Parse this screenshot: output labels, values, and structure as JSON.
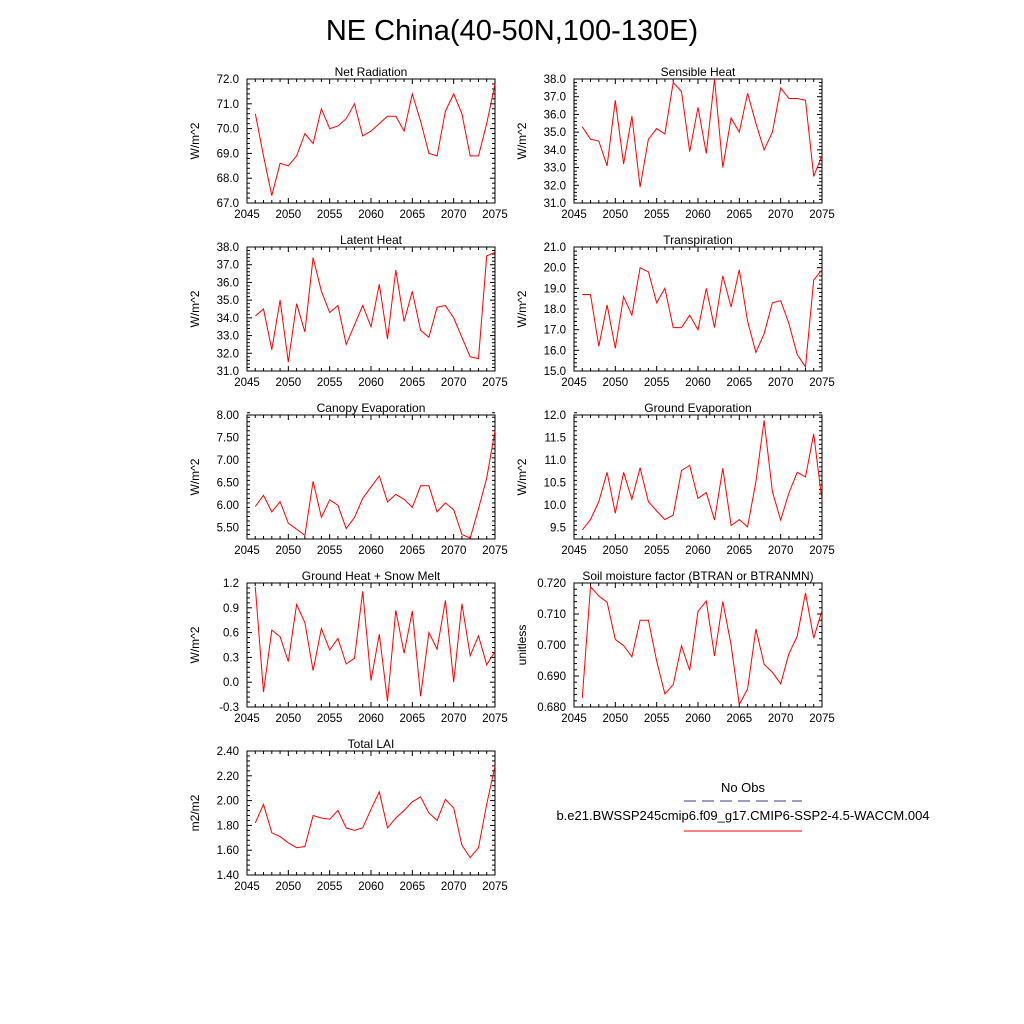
{
  "title": "NE China(40-50N,100-130E)",
  "colors": {
    "series": "#ff0000",
    "obs_dash": "#3a3a8c",
    "axis": "#000000"
  },
  "legend": {
    "obs_label": "No Obs",
    "case_label": "b.e21.BWSSP245cmip6.f09_g17.CMIP6-SSP2-4.5-WACCM.004"
  },
  "chart_data": [
    {
      "type": "line",
      "title": "Net Radiation",
      "ylabel": "W/m^2",
      "xlim": [
        2045,
        2075
      ],
      "ylim": [
        67.0,
        72.0
      ],
      "xticks": [
        "2045",
        "2050",
        "2055",
        "2060",
        "2065",
        "2070",
        "2075"
      ],
      "yticks": [
        "67.0",
        "68.0",
        "69.0",
        "70.0",
        "71.0",
        "72.0"
      ],
      "x": [
        2046,
        2047,
        2048,
        2049,
        2050,
        2051,
        2052,
        2053,
        2054,
        2055,
        2056,
        2057,
        2058,
        2059,
        2060,
        2061,
        2062,
        2063,
        2064,
        2065,
        2066,
        2067,
        2068,
        2069,
        2070,
        2071,
        2072,
        2073,
        2074,
        2075
      ],
      "values": [
        70.6,
        68.9,
        67.3,
        68.6,
        68.5,
        68.9,
        69.8,
        69.4,
        70.8,
        70.0,
        70.1,
        70.4,
        71.0,
        69.7,
        69.9,
        70.2,
        70.5,
        70.5,
        69.9,
        71.4,
        70.3,
        69.0,
        68.9,
        70.7,
        71.4,
        70.6,
        68.9,
        68.9,
        70.2,
        71.8
      ]
    },
    {
      "type": "line",
      "title": "Sensible Heat",
      "ylabel": "W/m^2",
      "xlim": [
        2045,
        2075
      ],
      "ylim": [
        31.0,
        38.0
      ],
      "xticks": [
        "2045",
        "2050",
        "2055",
        "2060",
        "2065",
        "2070",
        "2075"
      ],
      "yticks": [
        "31.0",
        "32.0",
        "33.0",
        "34.0",
        "35.0",
        "36.0",
        "37.0",
        "38.0"
      ],
      "x": [
        2046,
        2047,
        2048,
        2049,
        2050,
        2051,
        2052,
        2053,
        2054,
        2055,
        2056,
        2057,
        2058,
        2059,
        2060,
        2061,
        2062,
        2063,
        2064,
        2065,
        2066,
        2067,
        2068,
        2069,
        2070,
        2071,
        2072,
        2073,
        2074,
        2075
      ],
      "values": [
        35.3,
        34.6,
        34.5,
        33.1,
        36.8,
        33.2,
        35.9,
        31.9,
        34.6,
        35.2,
        34.9,
        37.8,
        37.3,
        33.9,
        36.4,
        33.8,
        38.0,
        33.0,
        35.8,
        35.0,
        37.2,
        35.5,
        34.0,
        35.0,
        37.5,
        36.9,
        36.9,
        36.8,
        32.5,
        33.7
      ]
    },
    {
      "type": "line",
      "title": "Latent Heat",
      "ylabel": "W/m^2",
      "xlim": [
        2045,
        2075
      ],
      "ylim": [
        31.0,
        38.0
      ],
      "xticks": [
        "2045",
        "2050",
        "2055",
        "2060",
        "2065",
        "2070",
        "2075"
      ],
      "yticks": [
        "31.0",
        "32.0",
        "33.0",
        "34.0",
        "35.0",
        "36.0",
        "37.0",
        "38.0"
      ],
      "x": [
        2046,
        2047,
        2048,
        2049,
        2050,
        2051,
        2052,
        2053,
        2054,
        2055,
        2056,
        2057,
        2058,
        2059,
        2060,
        2061,
        2062,
        2063,
        2064,
        2065,
        2066,
        2067,
        2068,
        2069,
        2070,
        2071,
        2072,
        2073,
        2074,
        2075
      ],
      "values": [
        34.1,
        34.5,
        32.2,
        35.0,
        31.5,
        34.8,
        33.2,
        37.4,
        35.5,
        34.3,
        34.7,
        32.5,
        33.6,
        34.7,
        33.5,
        35.9,
        32.8,
        36.7,
        33.8,
        35.5,
        33.3,
        32.9,
        34.6,
        34.7,
        34.0,
        32.9,
        31.8,
        31.7,
        37.5,
        37.7
      ]
    },
    {
      "type": "line",
      "title": "Transpiration",
      "ylabel": "W/m^2",
      "xlim": [
        2045,
        2075
      ],
      "ylim": [
        15.0,
        21.0
      ],
      "xticks": [
        "2045",
        "2050",
        "2055",
        "2060",
        "2065",
        "2070",
        "2075"
      ],
      "yticks": [
        "15.0",
        "16.0",
        "17.0",
        "18.0",
        "19.0",
        "20.0",
        "21.0"
      ],
      "x": [
        2046,
        2047,
        2048,
        2049,
        2050,
        2051,
        2052,
        2053,
        2054,
        2055,
        2056,
        2057,
        2058,
        2059,
        2060,
        2061,
        2062,
        2063,
        2064,
        2065,
        2066,
        2067,
        2068,
        2069,
        2070,
        2071,
        2072,
        2073,
        2074,
        2075
      ],
      "values": [
        18.7,
        18.7,
        16.2,
        18.2,
        16.1,
        18.6,
        17.7,
        20.0,
        19.8,
        18.3,
        19.0,
        17.1,
        17.1,
        17.7,
        17.0,
        19.0,
        17.1,
        19.6,
        18.1,
        19.9,
        17.4,
        15.9,
        16.8,
        18.3,
        18.4,
        17.3,
        15.8,
        15.2,
        19.4,
        19.9
      ]
    },
    {
      "type": "line",
      "title": "Canopy Evaporation",
      "ylabel": "W/m^2",
      "xlim": [
        2045,
        2075
      ],
      "ylim": [
        5.25,
        8.0
      ],
      "xticks": [
        "2045",
        "2050",
        "2055",
        "2060",
        "2065",
        "2070",
        "2075"
      ],
      "yticks": [
        "5.50",
        "6.00",
        "6.50",
        "7.00",
        "7.50",
        "8.00"
      ],
      "x": [
        2046,
        2047,
        2048,
        2049,
        2050,
        2051,
        2052,
        2053,
        2054,
        2055,
        2056,
        2057,
        2058,
        2059,
        2060,
        2061,
        2062,
        2063,
        2064,
        2065,
        2066,
        2067,
        2068,
        2069,
        2070,
        2071,
        2072,
        2073,
        2074,
        2075
      ],
      "values": [
        5.97,
        6.22,
        5.85,
        6.08,
        5.6,
        5.47,
        5.33,
        6.53,
        5.73,
        6.12,
        6.0,
        5.48,
        5.73,
        6.15,
        6.4,
        6.65,
        6.07,
        6.24,
        6.13,
        5.95,
        6.43,
        6.43,
        5.85,
        6.05,
        5.9,
        5.35,
        5.27,
        5.92,
        6.6,
        7.65
      ]
    },
    {
      "type": "line",
      "title": "Ground Evaporation",
      "ylabel": "W/m^2",
      "xlim": [
        2045,
        2075
      ],
      "ylim": [
        9.25,
        12.0
      ],
      "xticks": [
        "2045",
        "2050",
        "2055",
        "2060",
        "2065",
        "2070",
        "2075"
      ],
      "yticks": [
        "9.5",
        "10.0",
        "10.5",
        "11.0",
        "11.5",
        "12.0"
      ],
      "x": [
        2046,
        2047,
        2048,
        2049,
        2050,
        2051,
        2052,
        2053,
        2054,
        2055,
        2056,
        2057,
        2058,
        2059,
        2060,
        2061,
        2062,
        2063,
        2064,
        2065,
        2066,
        2067,
        2068,
        2069,
        2070,
        2071,
        2072,
        2073,
        2074,
        2075
      ],
      "values": [
        9.45,
        9.68,
        10.08,
        10.73,
        9.82,
        10.73,
        10.13,
        10.83,
        10.08,
        9.87,
        9.68,
        9.78,
        10.77,
        10.88,
        10.15,
        10.28,
        9.67,
        10.82,
        9.55,
        9.68,
        9.52,
        10.52,
        11.88,
        10.3,
        9.67,
        10.27,
        10.73,
        10.63,
        11.58,
        10.1
      ]
    },
    {
      "type": "line",
      "title": "Ground Heat + Snow Melt",
      "ylabel": "W/m^2",
      "xlim": [
        2045,
        2075
      ],
      "ylim": [
        -0.3,
        1.2
      ],
      "xticks": [
        "2045",
        "2050",
        "2055",
        "2060",
        "2065",
        "2070",
        "2075"
      ],
      "yticks": [
        "-0.3",
        "0.0",
        "0.3",
        "0.6",
        "0.9",
        "1.2"
      ],
      "x": [
        2046,
        2047,
        2048,
        2049,
        2050,
        2051,
        2052,
        2053,
        2054,
        2055,
        2056,
        2057,
        2058,
        2059,
        2060,
        2061,
        2062,
        2063,
        2064,
        2065,
        2066,
        2067,
        2068,
        2069,
        2070,
        2071,
        2072,
        2073,
        2074,
        2075
      ],
      "values": [
        1.15,
        -0.12,
        0.63,
        0.55,
        0.25,
        0.94,
        0.72,
        0.14,
        0.65,
        0.39,
        0.53,
        0.22,
        0.29,
        1.1,
        0.02,
        0.58,
        -0.23,
        0.87,
        0.35,
        0.86,
        -0.17,
        0.6,
        0.4,
        0.99,
        0.0,
        0.95,
        0.32,
        0.56,
        0.21,
        0.37
      ]
    },
    {
      "type": "line",
      "title": "Soil moisture factor (BTRAN or BTRANMN)",
      "ylabel": "unitless",
      "xlim": [
        2045,
        2075
      ],
      "ylim": [
        0.68,
        0.72
      ],
      "xticks": [
        "2045",
        "2050",
        "2055",
        "2060",
        "2065",
        "2070",
        "2075"
      ],
      "yticks": [
        "0.680",
        "0.690",
        "0.700",
        "0.710",
        "0.720"
      ],
      "x": [
        2046,
        2047,
        2048,
        2049,
        2050,
        2051,
        2052,
        2053,
        2054,
        2055,
        2056,
        2057,
        2058,
        2059,
        2060,
        2061,
        2062,
        2063,
        2064,
        2065,
        2066,
        2067,
        2068,
        2069,
        2070,
        2071,
        2072,
        2073,
        2074,
        2075
      ],
      "values": [
        0.683,
        0.7188,
        0.7158,
        0.7138,
        0.7018,
        0.6998,
        0.6962,
        0.708,
        0.708,
        0.6948,
        0.6842,
        0.6872,
        0.6998,
        0.6918,
        0.7108,
        0.7142,
        0.6965,
        0.714,
        0.7,
        0.6808,
        0.6858,
        0.7052,
        0.6938,
        0.6912,
        0.6875,
        0.6972,
        0.7028,
        0.7168,
        0.7022,
        0.7112
      ]
    },
    {
      "type": "line",
      "title": "Total LAI",
      "ylabel": "m2/m2",
      "xlim": [
        2045,
        2075
      ],
      "ylim": [
        1.4,
        2.4
      ],
      "xticks": [
        "2045",
        "2050",
        "2055",
        "2060",
        "2065",
        "2070",
        "2075"
      ],
      "yticks": [
        "1.40",
        "1.60",
        "1.80",
        "2.00",
        "2.20",
        "2.40"
      ],
      "x": [
        2046,
        2047,
        2048,
        2049,
        2050,
        2051,
        2052,
        2053,
        2054,
        2055,
        2056,
        2057,
        2058,
        2059,
        2060,
        2061,
        2062,
        2063,
        2064,
        2065,
        2066,
        2067,
        2068,
        2069,
        2070,
        2071,
        2072,
        2073,
        2074,
        2075
      ],
      "values": [
        1.82,
        1.97,
        1.74,
        1.71,
        1.66,
        1.62,
        1.63,
        1.88,
        1.86,
        1.85,
        1.92,
        1.78,
        1.76,
        1.78,
        1.93,
        2.07,
        1.78,
        1.86,
        1.92,
        1.99,
        2.03,
        1.9,
        1.84,
        2.01,
        1.94,
        1.64,
        1.54,
        1.62,
        1.97,
        2.28
      ]
    }
  ]
}
